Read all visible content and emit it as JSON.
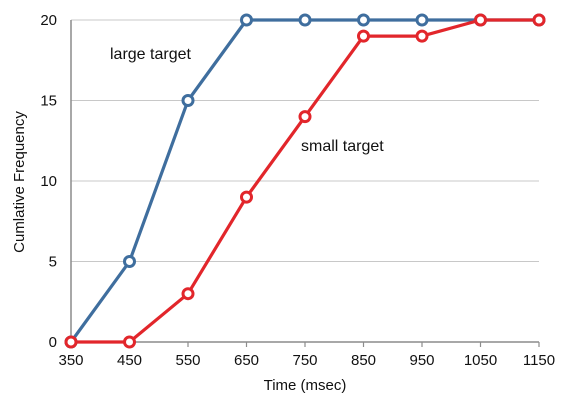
{
  "chart_data": {
    "type": "line",
    "title": "",
    "xlabel": "Time (msec)",
    "ylabel": "Cumlative Frequency",
    "x": [
      350,
      450,
      550,
      650,
      750,
      850,
      950,
      1050,
      1150
    ],
    "xlim": [
      350,
      1150
    ],
    "ylim": [
      0,
      20
    ],
    "xticks": [
      "350",
      "450",
      "550",
      "650",
      "750",
      "850",
      "950",
      "1050",
      "1150"
    ],
    "yticks": [
      "0",
      "5",
      "10",
      "15",
      "20"
    ],
    "grid": "horizontal",
    "legend": "direct-labels",
    "series": [
      {
        "name": "large target",
        "color": "#3f6e9e",
        "values": [
          0,
          5,
          15,
          20,
          20,
          20,
          20,
          20,
          20
        ]
      },
      {
        "name": "small target",
        "color": "#e2262b",
        "values": [
          0,
          0,
          3,
          9,
          14,
          19,
          19,
          20,
          20
        ]
      }
    ]
  }
}
